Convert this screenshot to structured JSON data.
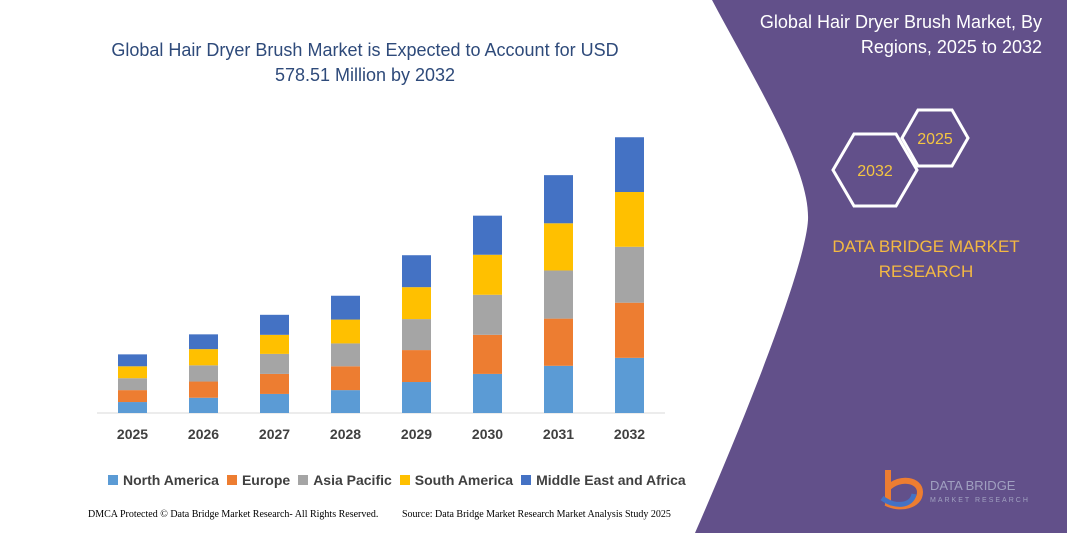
{
  "chart_data": {
    "type": "bar",
    "stacked": true,
    "title": "Global Hair Dryer Brush Market is Expected to Account for USD 578.51 Million by 2032",
    "categories": [
      "2025",
      "2026",
      "2027",
      "2028",
      "2029",
      "2030",
      "2031",
      "2032"
    ],
    "series": [
      {
        "name": "North America",
        "color": "#5b9bd5",
        "values": [
          23,
          32,
          40,
          48,
          65,
          82,
          99,
          115.7
        ]
      },
      {
        "name": "Europe",
        "color": "#ed7d31",
        "values": [
          25,
          34,
          42,
          50,
          67,
          82,
          99,
          115.7
        ]
      },
      {
        "name": "Asia Pacific",
        "color": "#a5a5a5",
        "values": [
          25,
          34,
          42,
          48,
          65,
          84,
          101,
          117.3
        ]
      },
      {
        "name": "South America",
        "color": "#ffc000",
        "values": [
          25,
          34,
          40,
          50,
          67,
          84,
          99,
          114.9
        ]
      },
      {
        "name": "Middle East and Africa",
        "color": "#4472c4",
        "values": [
          25,
          31,
          42,
          50,
          67,
          82,
          101,
          114.9
        ]
      }
    ],
    "ylim": [
      0,
      600
    ]
  },
  "panel": {
    "title": "Global Hair Dryer Brush Market, By Regions, 2025 to 2032",
    "hexagons": [
      "2032",
      "2025"
    ],
    "brand": "DATA BRIDGE MARKET RESEARCH",
    "logo": [
      "DATA BRIDGE",
      "MARKET RESEARCH"
    ]
  },
  "footer": {
    "left": "DMCA Protected © Data Bridge Market Research- All Rights Reserved.",
    "right": "Source: Data Bridge Market Research Market Analysis Study 2025"
  }
}
